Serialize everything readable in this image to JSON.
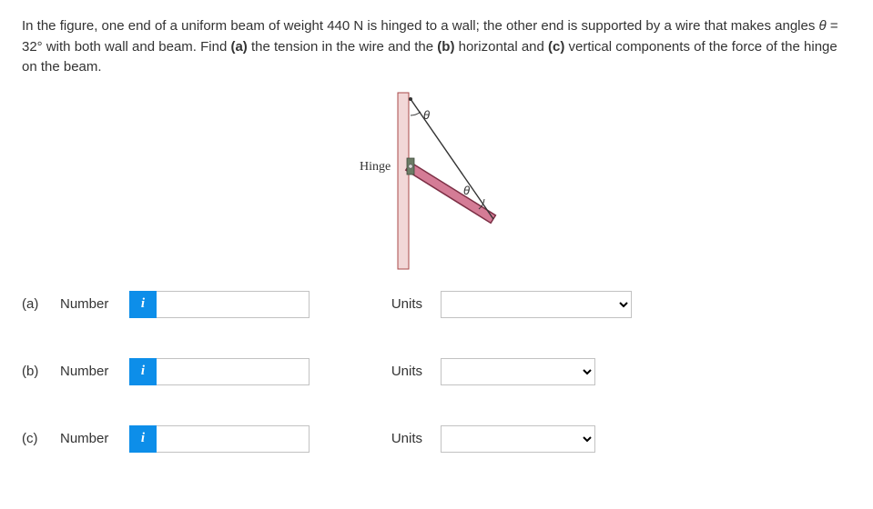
{
  "problem": {
    "text_html": "In the figure, one end of a uniform beam of weight 440 N is hinged to a wall; the other end is supported by a wire that makes angles <i>θ</i> = 32° with both wall and beam. Find <b>(a)</b> the tension in the wire and the <b>(b)</b> horizontal and <b>(c)</b> vertical components of the force of the hinge on the beam."
  },
  "figure": {
    "hinge_label": "Hinge",
    "theta_label": "θ",
    "colors": {
      "wall_fill": "#f2d7d7",
      "wall_stroke": "#a84a4a",
      "beam_fill": "#d47c96",
      "beam_stroke": "#7c2f45",
      "wire": "#333333",
      "hinge_plate": "#6b7b65"
    }
  },
  "parts": [
    {
      "id": "a",
      "label": "(a)",
      "number_label": "Number",
      "units_label": "Units",
      "value": "",
      "units": "",
      "select_width": "wide"
    },
    {
      "id": "b",
      "label": "(b)",
      "number_label": "Number",
      "units_label": "Units",
      "value": "",
      "units": "",
      "select_width": "mid"
    },
    {
      "id": "c",
      "label": "(c)",
      "number_label": "Number",
      "units_label": "Units",
      "value": "",
      "units": "",
      "select_width": "mid"
    }
  ],
  "info_glyph": "i"
}
